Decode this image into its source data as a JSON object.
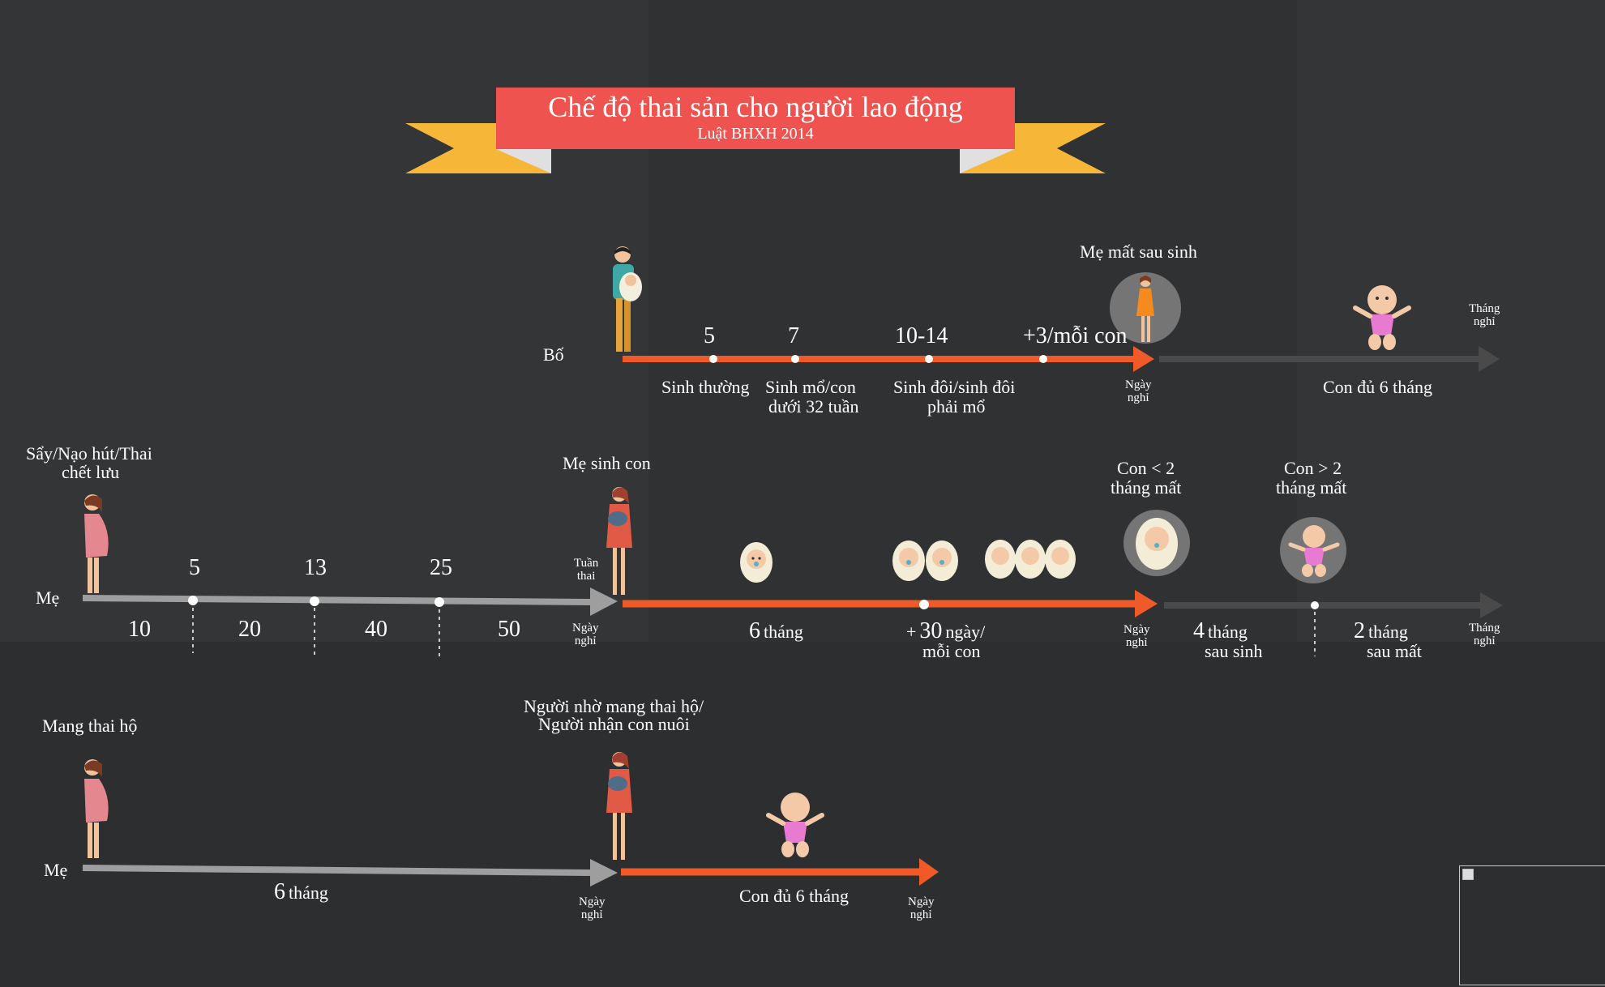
{
  "title": {
    "main": "Chế độ thai sản cho người lao động",
    "sub": "Luật BHXH 2014"
  },
  "colors": {
    "background": "#2f3133",
    "banner": "#ef5350",
    "ribbon_tails": "#f6b637",
    "timeline_orange": "#f05a28",
    "timeline_grey": "#9e9e9e",
    "timeline_dark_grey": "#4a4a4a"
  },
  "units": {
    "days_line1": "Ngày",
    "days_line2": "nghỉ",
    "months_line1": "Tháng",
    "months_line2": "nghỉ",
    "weeks_line1": "Tuần",
    "weeks_line2": "thai"
  },
  "father": {
    "row_label": "Bố",
    "values": [
      "5",
      "7",
      "10-14",
      "+3/mỗi con"
    ],
    "labels": [
      "Sinh thường"
    ],
    "labels_cs": [
      "Sinh mổ/con",
      "dưới 32 tuần"
    ],
    "labels_twins": [
      "Sinh đôi/sinh đôi",
      "phải mổ"
    ],
    "mother_died": "Mẹ mất sau sinh",
    "child_6_months": "Con đủ 6 tháng"
  },
  "mother": {
    "row_label": "Mẹ",
    "miscarriage_title": [
      "Sẩy/Nạo hút/Thai",
      "chết lưu"
    ],
    "weeks": [
      "5",
      "13",
      "25"
    ],
    "days": [
      "10",
      "20",
      "40",
      "50"
    ],
    "birth_title": "Mẹ sinh con",
    "six": {
      "num": "6",
      "unit": "tháng"
    },
    "thirty": {
      "prefix": "+",
      "num": "30",
      "unit": "ngày/",
      "line2": "mỗi con"
    },
    "under2": [
      "Con < 2",
      "tháng mất"
    ],
    "over2": [
      "Con > 2",
      "tháng mất"
    ],
    "four": {
      "num": "4",
      "unit": "tháng",
      "line2": "sau sinh"
    },
    "two": {
      "num": "2",
      "unit": "tháng",
      "line2": "sau mất"
    }
  },
  "surrogacy": {
    "title": "Mang thai hộ",
    "row_label": "Mẹ",
    "six": {
      "num": "6",
      "unit": "tháng"
    },
    "adoptive": [
      "Người nhờ mang thai hộ/",
      "Người nhận con nuôi"
    ],
    "child_6_months": "Con đủ 6 tháng"
  }
}
